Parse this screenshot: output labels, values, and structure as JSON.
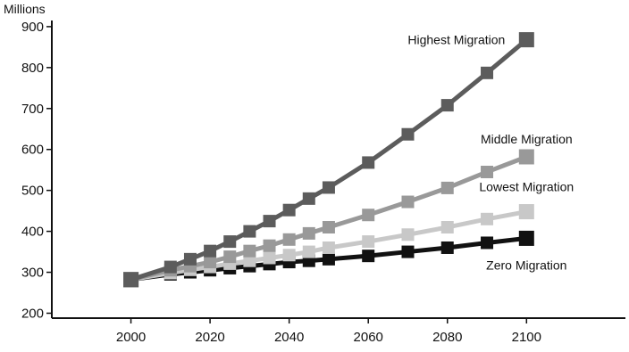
{
  "chart_data": {
    "type": "line",
    "title": "",
    "ylabel": "Millions",
    "xlabel": "",
    "x": [
      2000,
      2010,
      2015,
      2020,
      2025,
      2030,
      2035,
      2040,
      2045,
      2050,
      2060,
      2070,
      2080,
      2090,
      2100
    ],
    "xticks": [
      2000,
      2020,
      2040,
      2060,
      2080,
      2100
    ],
    "yticks": [
      200,
      300,
      400,
      500,
      600,
      700,
      800,
      900
    ],
    "xlim": [
      1980,
      2125
    ],
    "ylim": [
      188,
      915
    ],
    "grid": false,
    "legend": "none",
    "series": [
      {
        "name": "Zero Migration",
        "color": "#111111",
        "values": [
          282,
          295,
          300,
          305,
          310,
          315,
          320,
          325,
          328,
          332,
          340,
          350,
          360,
          372,
          383
        ]
      },
      {
        "name": "Lowest Migration",
        "color": "#c8c8c8",
        "values": [
          282,
          298,
          306,
          313,
          321,
          328,
          335,
          342,
          350,
          360,
          375,
          392,
          410,
          430,
          448
        ]
      },
      {
        "name": "Middle Migration",
        "color": "#999999",
        "values": [
          282,
          305,
          315,
          325,
          338,
          352,
          365,
          380,
          395,
          410,
          440,
          472,
          506,
          545,
          582
        ]
      },
      {
        "name": "Highest Migration",
        "color": "#5c5c5c",
        "values": [
          282,
          313,
          332,
          352,
          375,
          400,
          425,
          452,
          480,
          507,
          568,
          637,
          708,
          787,
          868
        ]
      }
    ]
  }
}
